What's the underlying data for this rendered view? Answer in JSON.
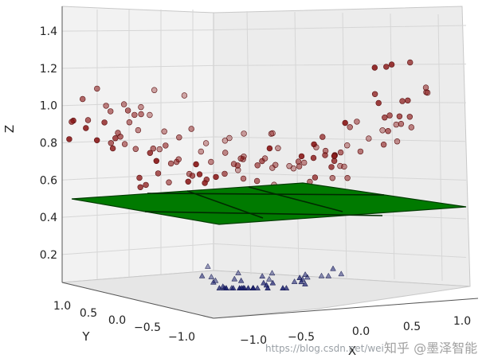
{
  "chart_data": {
    "type": "scatter",
    "projection": "3d",
    "title": "",
    "xlabel": "X",
    "ylabel": "Y",
    "zlabel": "Z",
    "xlim": [
      -1.3,
      1.3
    ],
    "ylim": [
      -1.0,
      1.0
    ],
    "zlim": [
      0.05,
      1.5
    ],
    "x_ticks": [
      "−1.0",
      "−0.5",
      "0.0",
      "0.5",
      "1.0"
    ],
    "y_ticks": [
      "1.0",
      "0.5",
      "0.0",
      "−0.5",
      "−1.0"
    ],
    "z_ticks": [
      "0.2",
      "0.4",
      "0.6",
      "0.8",
      "1.0",
      "1.2",
      "1.4"
    ],
    "grid": true,
    "colors": {
      "upper": "#8b1a1a",
      "lower": "#1a1f6e",
      "plane": "#007a00"
    },
    "plane": {
      "z": 0.5
    },
    "series": [
      {
        "marker": "circle",
        "color": "#8b1a1a",
        "points": []
      },
      {
        "marker": "triangle",
        "color": "#1a1f6e",
        "points": []
      }
    ]
  },
  "watermark": {
    "url": "https://blog.csdn.net/wei",
    "brand": "知乎 @墨泽智能"
  }
}
